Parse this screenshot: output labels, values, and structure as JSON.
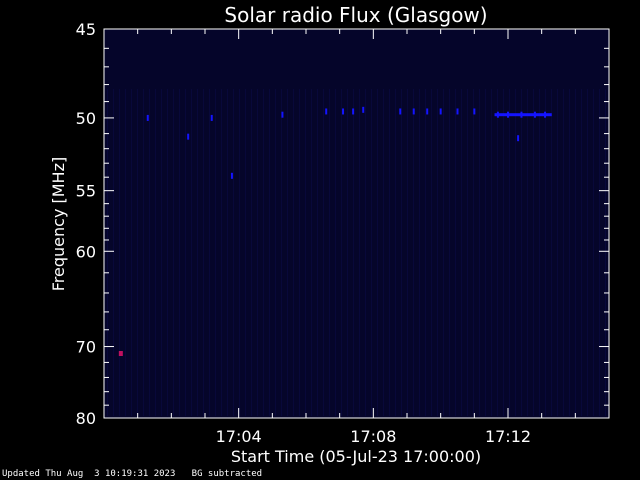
{
  "chart_data": {
    "type": "heatmap",
    "title": "Solar radio Flux (Glasgow)",
    "xlabel": "Start Time (05-Jul-23 17:00:00)",
    "ylabel": "Frequency [MHz]",
    "x_unit": "minutes after 17:00",
    "xlim": [
      0,
      15
    ],
    "x_ticks": [
      {
        "value": 4,
        "label": "17:04"
      },
      {
        "value": 8,
        "label": "17:08"
      },
      {
        "value": 12,
        "label": "17:12"
      }
    ],
    "ylim": [
      45,
      80
    ],
    "y_scale": "reciprocal",
    "y_ticks": [
      45,
      50,
      55,
      60,
      70,
      80
    ],
    "background_color": "#05052a",
    "emission_color": "#1414ff",
    "spot_color": "#c01060",
    "emission": [
      {
        "t": 1.3,
        "f": 50.0
      },
      {
        "t": 2.5,
        "f": 51.2
      },
      {
        "t": 3.2,
        "f": 50.0
      },
      {
        "t": 3.8,
        "f": 53.9
      },
      {
        "t": 5.3,
        "f": 49.8
      },
      {
        "t": 6.6,
        "f": 49.6
      },
      {
        "t": 7.1,
        "f": 49.6
      },
      {
        "t": 7.4,
        "f": 49.6
      },
      {
        "t": 7.7,
        "f": 49.5
      },
      {
        "t": 8.8,
        "f": 49.6
      },
      {
        "t": 9.2,
        "f": 49.6
      },
      {
        "t": 9.6,
        "f": 49.6
      },
      {
        "t": 10.0,
        "f": 49.6
      },
      {
        "t": 10.5,
        "f": 49.6
      },
      {
        "t": 11.0,
        "f": 49.6
      },
      {
        "t": 11.7,
        "f": 49.8
      },
      {
        "t": 12.0,
        "f": 49.8
      },
      {
        "t": 12.4,
        "f": 49.8
      },
      {
        "t": 12.8,
        "f": 49.8
      },
      {
        "t": 13.1,
        "f": 49.8
      },
      {
        "t": 12.3,
        "f": 51.3
      }
    ],
    "spots": [
      {
        "t": 0.5,
        "f": 70.8
      }
    ]
  },
  "footer": {
    "updated": "Updated Thu Aug  3 10:19:31 2023",
    "note": "BG subtracted"
  }
}
